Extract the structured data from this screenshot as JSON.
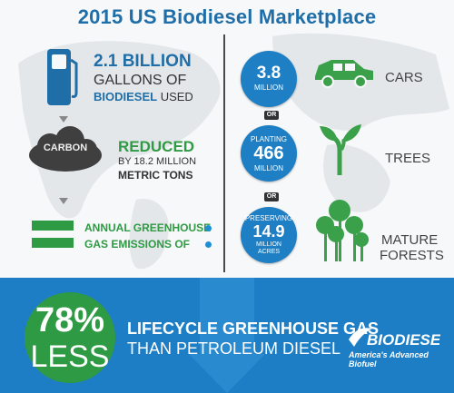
{
  "title": "2015 US Biodiesel Marketplace",
  "gallons": {
    "line1": "2.1 BILLION",
    "line2": "GALLONS OF",
    "line3_bold": "BIODIESEL",
    "line3_rest": " USED"
  },
  "carbon": {
    "cloud_label": "CARBON",
    "reduced": "REDUCED",
    "by": "BY 18.2 MILLION",
    "tons": "METRIC TONS"
  },
  "emissions": {
    "line1": "ANNUAL GREENHOUSE",
    "line2": "GAS EMISSIONS OF"
  },
  "equivalents": [
    {
      "value": "3.8",
      "unit": "MILLION",
      "label": "CARS"
    },
    {
      "pre": "PLANTING",
      "value": "466",
      "unit": "MILLION",
      "label": "TREES"
    },
    {
      "pre": "PRESERVING",
      "value": "14.9",
      "unit": "MILLION",
      "unit2": "ACRES",
      "label1": "MATURE",
      "label2": "FORESTS"
    }
  ],
  "or_label": "OR",
  "lifecycle": {
    "percent": "78%",
    "less": "LESS",
    "line1": "LIFECYCLE GREENHOUSE GAS",
    "line2": "THAN PETROLEUM DIESEL"
  },
  "logo": {
    "word": "BIODIESEL",
    "tagline": "America's Advanced Biofuel"
  },
  "colors": {
    "blue": "#1f6ea8",
    "green": "#2e9a43",
    "band": "#1d7ec6",
    "circle": "#1f7fc4"
  }
}
